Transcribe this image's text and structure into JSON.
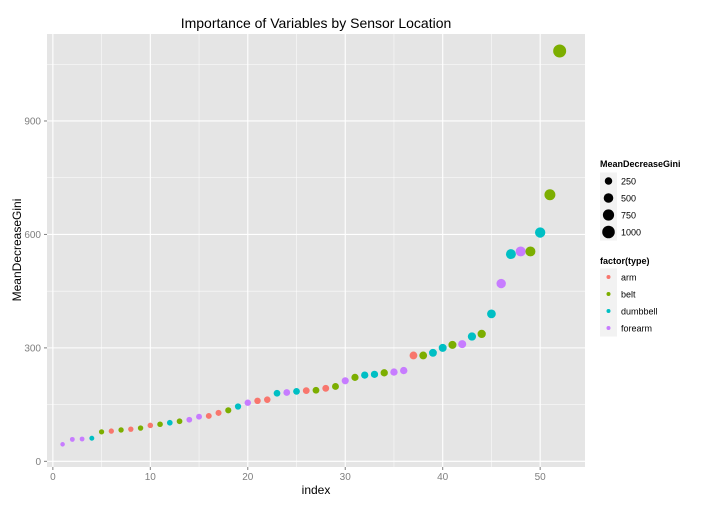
{
  "chart_data": {
    "type": "scatter",
    "title": "Importance of Variables by Sensor Location",
    "xlabel": "index",
    "ylabel": "MeanDecreaseGini",
    "xlim": [
      -0.6,
      54.6
    ],
    "ylim": [
      -15,
      1130
    ],
    "x_ticks": [
      0,
      10,
      20,
      30,
      40,
      50
    ],
    "x_tick_labels": [
      "0",
      "10",
      "20",
      "30",
      "40",
      "50"
    ],
    "y_ticks": [
      0,
      300,
      600,
      900
    ],
    "y_tick_labels": [
      "0",
      "300",
      "600",
      "900"
    ],
    "grid": true,
    "legend_position": "right",
    "size_legend": {
      "title": "MeanDecreaseGini",
      "values": [
        250,
        500,
        750,
        1000
      ],
      "labels": [
        "250",
        "500",
        "750",
        "1000"
      ]
    },
    "color_legend": {
      "title": "factor(type)",
      "categories": [
        "arm",
        "belt",
        "dumbbell",
        "forearm"
      ],
      "labels": [
        "arm",
        "belt",
        "dumbbell",
        "forearm"
      ],
      "colors": [
        "#F8766D",
        "#7CAE00",
        "#00BFC4",
        "#C77CFF"
      ]
    },
    "points": [
      {
        "x": 1,
        "y": 45,
        "type": "forearm"
      },
      {
        "x": 2,
        "y": 58,
        "type": "forearm"
      },
      {
        "x": 3,
        "y": 59,
        "type": "forearm"
      },
      {
        "x": 4,
        "y": 61,
        "type": "dumbbell"
      },
      {
        "x": 5,
        "y": 78,
        "type": "belt"
      },
      {
        "x": 6,
        "y": 80,
        "type": "arm"
      },
      {
        "x": 7,
        "y": 83,
        "type": "belt"
      },
      {
        "x": 8,
        "y": 85,
        "type": "arm"
      },
      {
        "x": 9,
        "y": 88,
        "type": "belt"
      },
      {
        "x": 10,
        "y": 95,
        "type": "arm"
      },
      {
        "x": 11,
        "y": 98,
        "type": "belt"
      },
      {
        "x": 12,
        "y": 102,
        "type": "dumbbell"
      },
      {
        "x": 13,
        "y": 106,
        "type": "belt"
      },
      {
        "x": 14,
        "y": 110,
        "type": "forearm"
      },
      {
        "x": 15,
        "y": 118,
        "type": "forearm"
      },
      {
        "x": 16,
        "y": 120,
        "type": "arm"
      },
      {
        "x": 17,
        "y": 128,
        "type": "arm"
      },
      {
        "x": 18,
        "y": 135,
        "type": "belt"
      },
      {
        "x": 19,
        "y": 145,
        "type": "dumbbell"
      },
      {
        "x": 20,
        "y": 155,
        "type": "forearm"
      },
      {
        "x": 21,
        "y": 160,
        "type": "arm"
      },
      {
        "x": 22,
        "y": 163,
        "type": "arm"
      },
      {
        "x": 23,
        "y": 180,
        "type": "dumbbell"
      },
      {
        "x": 24,
        "y": 182,
        "type": "forearm"
      },
      {
        "x": 25,
        "y": 185,
        "type": "dumbbell"
      },
      {
        "x": 26,
        "y": 187,
        "type": "arm"
      },
      {
        "x": 27,
        "y": 188,
        "type": "belt"
      },
      {
        "x": 28,
        "y": 193,
        "type": "arm"
      },
      {
        "x": 29,
        "y": 198,
        "type": "belt"
      },
      {
        "x": 30,
        "y": 213,
        "type": "forearm"
      },
      {
        "x": 31,
        "y": 222,
        "type": "belt"
      },
      {
        "x": 32,
        "y": 228,
        "type": "dumbbell"
      },
      {
        "x": 33,
        "y": 230,
        "type": "dumbbell"
      },
      {
        "x": 34,
        "y": 234,
        "type": "belt"
      },
      {
        "x": 35,
        "y": 236,
        "type": "forearm"
      },
      {
        "x": 36,
        "y": 240,
        "type": "forearm"
      },
      {
        "x": 37,
        "y": 280,
        "type": "arm"
      },
      {
        "x": 38,
        "y": 280,
        "type": "belt"
      },
      {
        "x": 39,
        "y": 287,
        "type": "dumbbell"
      },
      {
        "x": 40,
        "y": 300,
        "type": "dumbbell"
      },
      {
        "x": 41,
        "y": 308,
        "type": "belt"
      },
      {
        "x": 42,
        "y": 310,
        "type": "forearm"
      },
      {
        "x": 43,
        "y": 330,
        "type": "dumbbell"
      },
      {
        "x": 44,
        "y": 337,
        "type": "belt"
      },
      {
        "x": 45,
        "y": 390,
        "type": "dumbbell"
      },
      {
        "x": 46,
        "y": 470,
        "type": "forearm"
      },
      {
        "x": 47,
        "y": 548,
        "type": "dumbbell"
      },
      {
        "x": 48,
        "y": 555,
        "type": "forearm"
      },
      {
        "x": 49,
        "y": 555,
        "type": "belt"
      },
      {
        "x": 50,
        "y": 605,
        "type": "dumbbell"
      },
      {
        "x": 51,
        "y": 705,
        "type": "belt"
      },
      {
        "x": 52,
        "y": 1085,
        "type": "belt"
      }
    ]
  }
}
